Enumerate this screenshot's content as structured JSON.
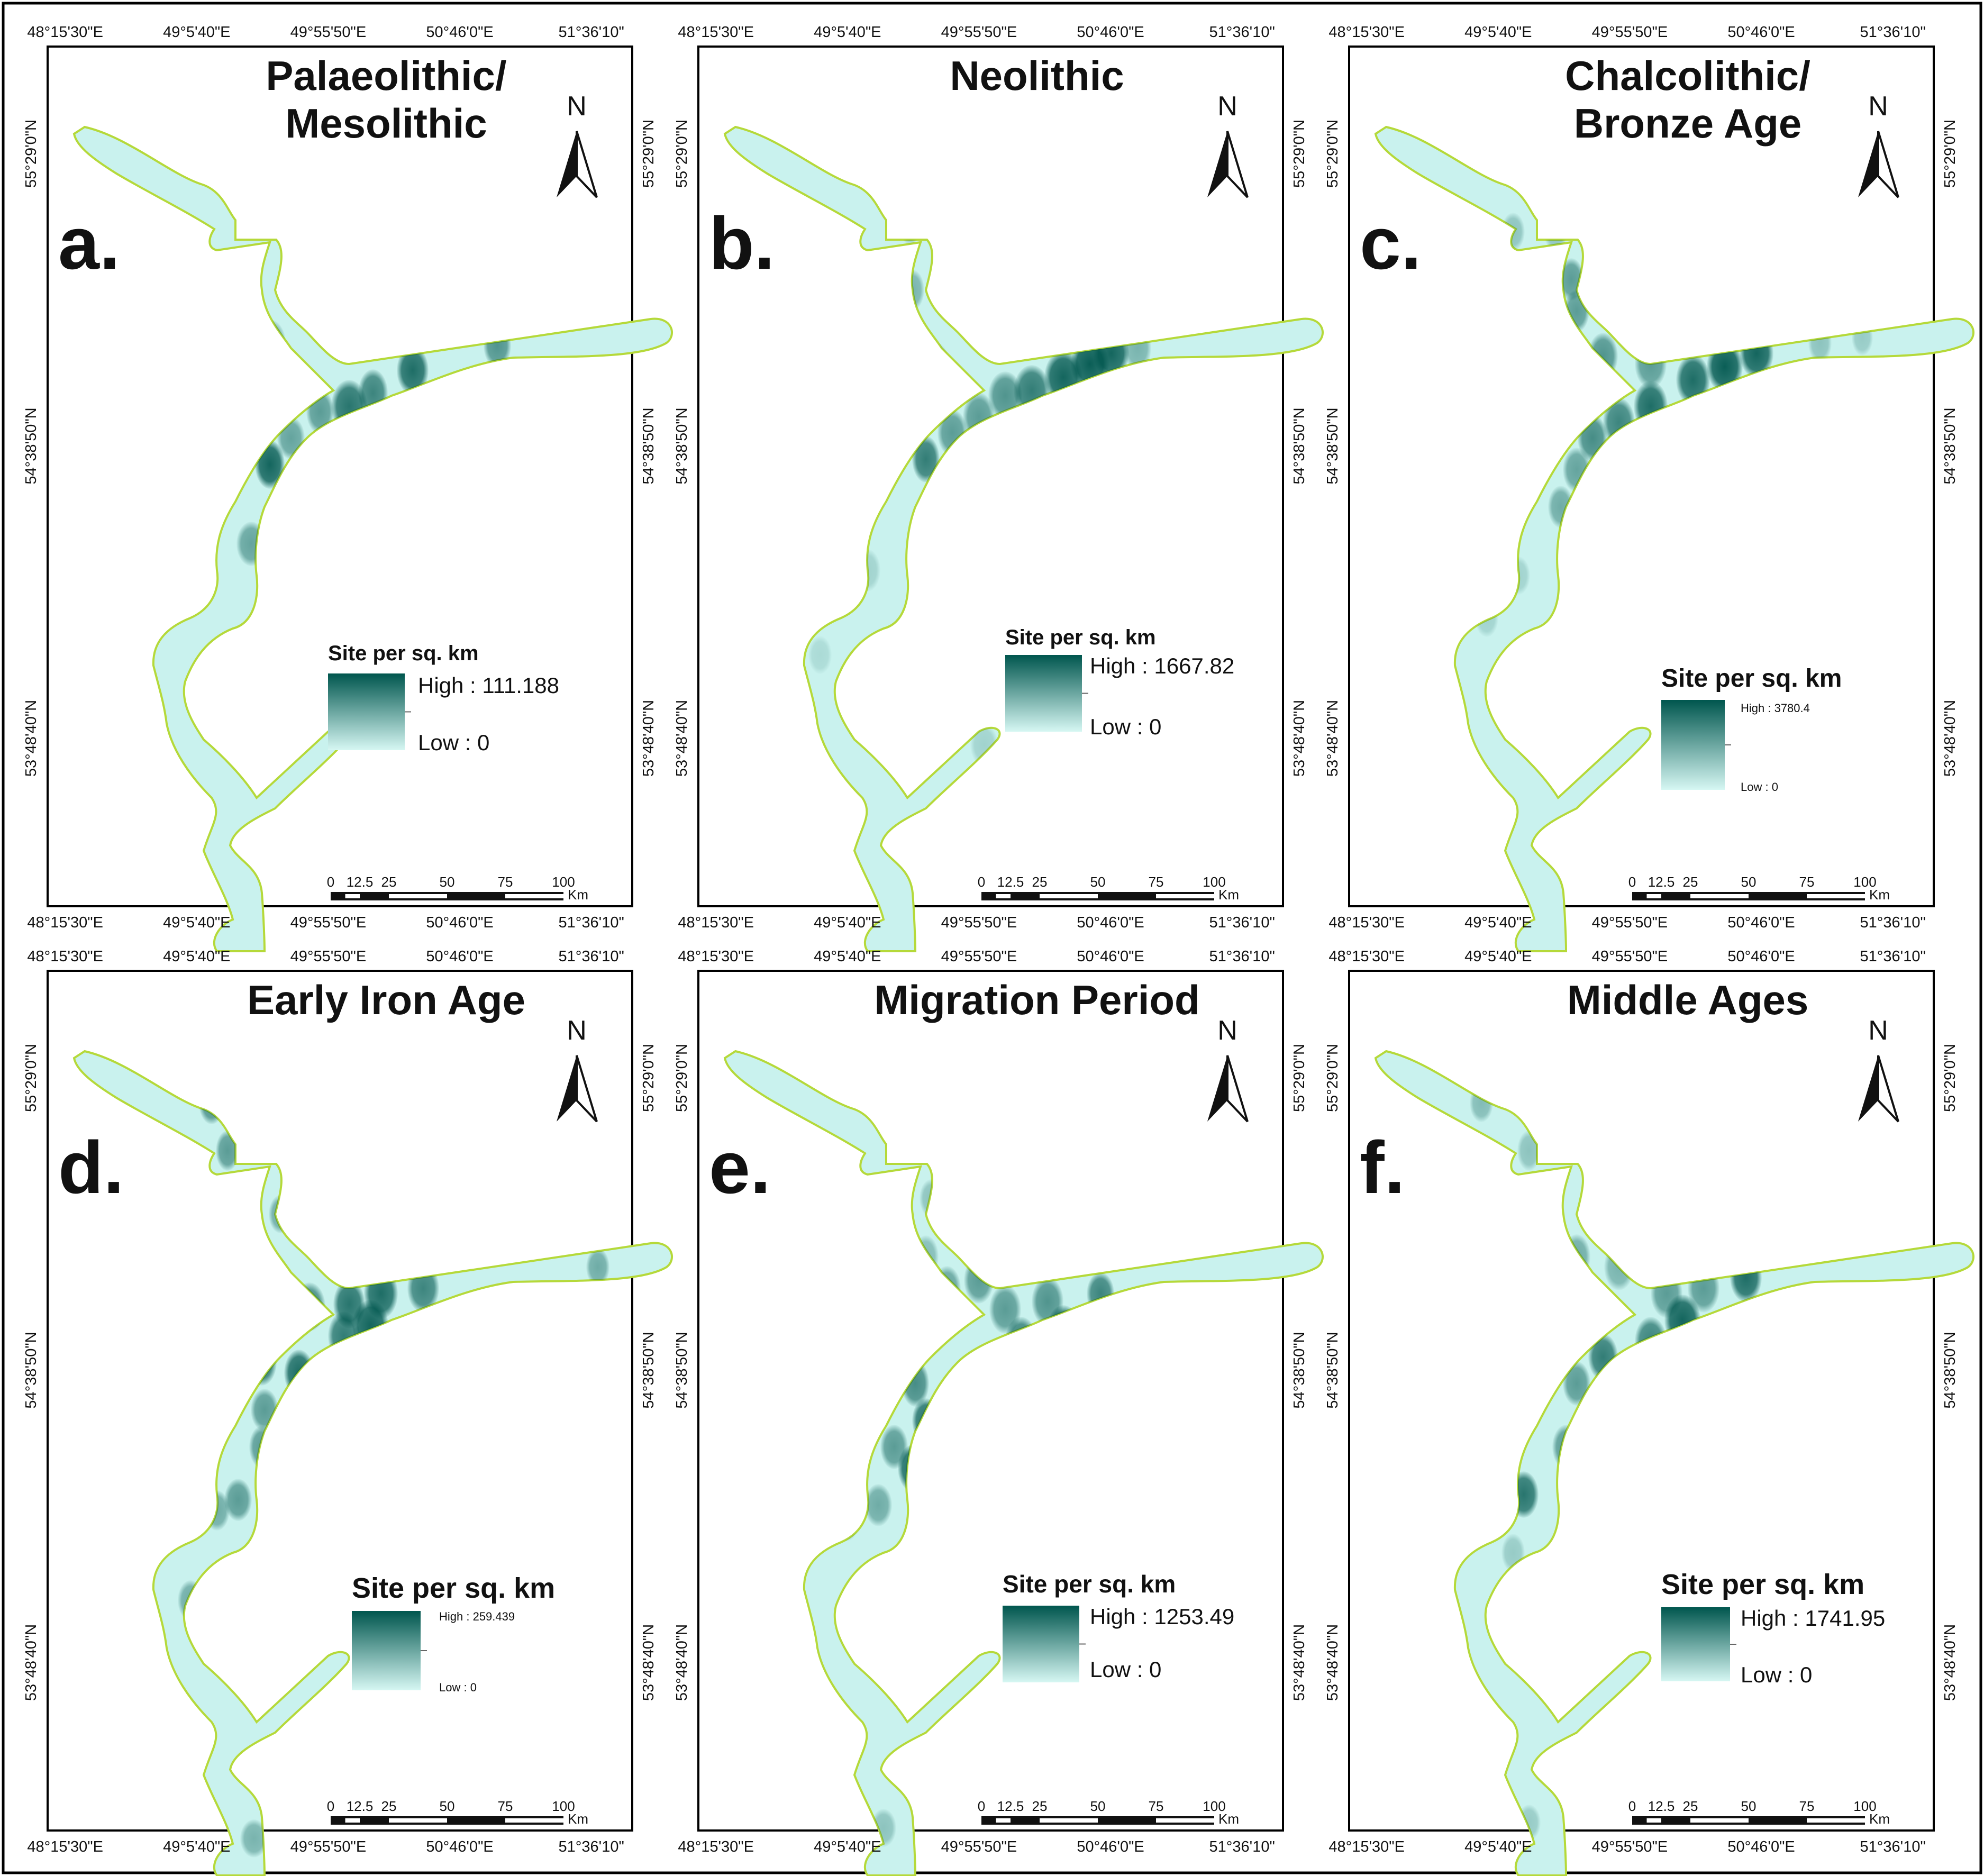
{
  "colors": {
    "region_fill": "#c9f2ee",
    "region_outline": "#b5d93a",
    "density_high": "#00564e",
    "density_low": "#d6f7f3",
    "frame": "#000000"
  },
  "coordinate_ticks": {
    "longitudes": [
      "48°15'30\"E",
      "49°5'40\"E",
      "49°55'50\"E",
      "50°46'0\"E",
      "51°36'10\""
    ],
    "longitudes_top_last": "51°36'10\"E",
    "latitudes": [
      "55°29'0\"N",
      "54°38'50\"N",
      "53°48'40\"N"
    ]
  },
  "north_arrow_label": "N",
  "scale_bar": {
    "ticks": [
      "0",
      "12.5",
      "25",
      "50",
      "75",
      "100"
    ],
    "unit": "Km"
  },
  "panels": [
    {
      "id": "a",
      "letter": "a.",
      "title_lines": [
        "Palaeolithic/",
        "Mesolithic"
      ],
      "legend": {
        "title": "Site per sq. km",
        "high": "High : 111.188",
        "low": "Low : 0"
      }
    },
    {
      "id": "b",
      "letter": "b.",
      "title_lines": [
        "Neolithic"
      ],
      "legend": {
        "title": "Site per sq. km",
        "high": "High : 1667.82",
        "low": "Low : 0"
      }
    },
    {
      "id": "c",
      "letter": "c.",
      "title_lines": [
        "Chalcolithic/",
        "Bronze Age"
      ],
      "legend": {
        "title": "Site per sq. km",
        "high": "High : 3780.4",
        "low": "Low : 0"
      }
    },
    {
      "id": "d",
      "letter": "d.",
      "title_lines": [
        "Early Iron Age"
      ],
      "legend": {
        "title": "Site per sq. km",
        "high": "High : 259.439",
        "low": "Low : 0"
      }
    },
    {
      "id": "e",
      "letter": "e.",
      "title_lines": [
        "Migration Period"
      ],
      "legend": {
        "title": "Site per sq. km",
        "high": "High : 1253.49",
        "low": "Low : 0"
      }
    },
    {
      "id": "f",
      "letter": "f.",
      "title_lines": [
        "Middle Ages"
      ],
      "legend": {
        "title": "Site per sq. km",
        "high": "High : 1741.95",
        "low": "Low : 0"
      }
    }
  ]
}
